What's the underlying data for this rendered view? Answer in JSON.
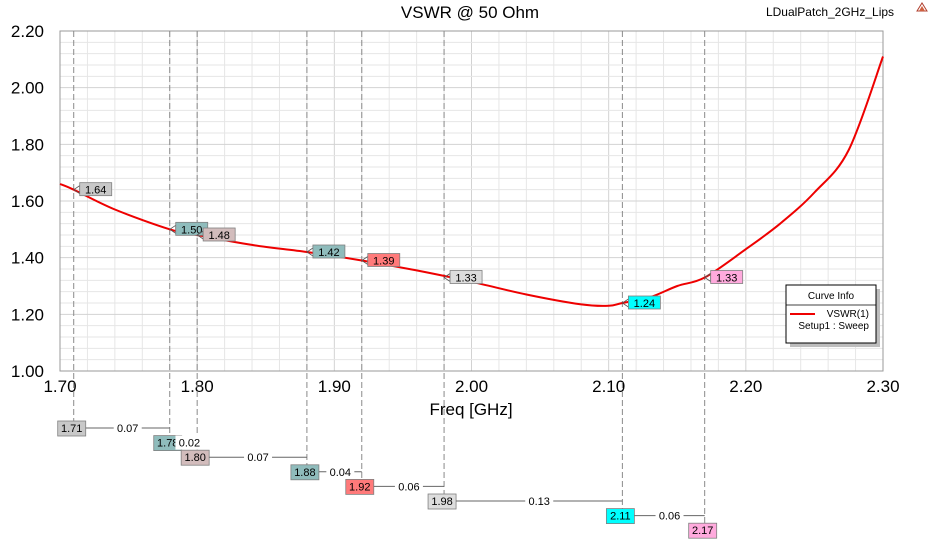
{
  "chart_data": {
    "type": "line",
    "title": "VSWR @ 50 Ohm",
    "project_label": "LDualPatch_2GHz_Lips",
    "xlabel": "Freq [GHz]",
    "ylabel": "",
    "xlim": [
      1.7,
      2.3
    ],
    "ylim": [
      1.0,
      2.2
    ],
    "x_ticks": [
      "1.70",
      "1.80",
      "1.90",
      "2.00",
      "2.10",
      "2.20",
      "2.30"
    ],
    "y_ticks": [
      "1.00",
      "1.20",
      "1.40",
      "1.60",
      "1.80",
      "2.00",
      "2.20"
    ],
    "grid": true,
    "legend": {
      "title": "Curve Info",
      "placement": "right",
      "entries": [
        {
          "name": "VSWR(1)",
          "sub": "Setup1 : Sweep",
          "color": "#ee0000"
        }
      ]
    },
    "series": [
      {
        "name": "VSWR(1)",
        "color": "#ee0000",
        "x": [
          1.7,
          1.71,
          1.74,
          1.78,
          1.8,
          1.84,
          1.88,
          1.92,
          1.96,
          2.0,
          2.04,
          2.08,
          2.1,
          2.11,
          2.13,
          2.15,
          2.17,
          2.2,
          2.225,
          2.25,
          2.275,
          2.3
        ],
        "y": [
          1.66,
          1.64,
          1.57,
          1.5,
          1.48,
          1.445,
          1.42,
          1.39,
          1.355,
          1.315,
          1.27,
          1.235,
          1.23,
          1.24,
          1.26,
          1.3,
          1.33,
          1.43,
          1.52,
          1.63,
          1.78,
          2.11
        ]
      }
    ],
    "markers": [
      {
        "x": 1.71,
        "xlabel": "1.71",
        "label": "1.64",
        "color": "#c8c8c8",
        "delta": "0.07"
      },
      {
        "x": 1.78,
        "xlabel": "1.78",
        "label": "1.50",
        "color": "#8fbcbc",
        "delta": "0.02"
      },
      {
        "x": 1.8,
        "xlabel": "1.80",
        "label": "1.48",
        "color": "#d2bcbc",
        "delta": "0.07"
      },
      {
        "x": 1.88,
        "xlabel": "1.88",
        "label": "1.42",
        "color": "#8fbcbc",
        "delta": "0.04"
      },
      {
        "x": 1.92,
        "xlabel": "1.92",
        "label": "1.39",
        "color": "#ff7a7a",
        "delta": "0.06"
      },
      {
        "x": 1.98,
        "xlabel": "1.98",
        "label": "1.33",
        "color": "#dddddd",
        "delta": "0.13"
      },
      {
        "x": 2.11,
        "xlabel": "2.11",
        "label": "1.24",
        "color": "#00ffff",
        "delta": "0.06"
      },
      {
        "x": 2.17,
        "xlabel": "2.17",
        "label": "1.33",
        "color": "#ffaadd",
        "delta": ""
      }
    ]
  }
}
